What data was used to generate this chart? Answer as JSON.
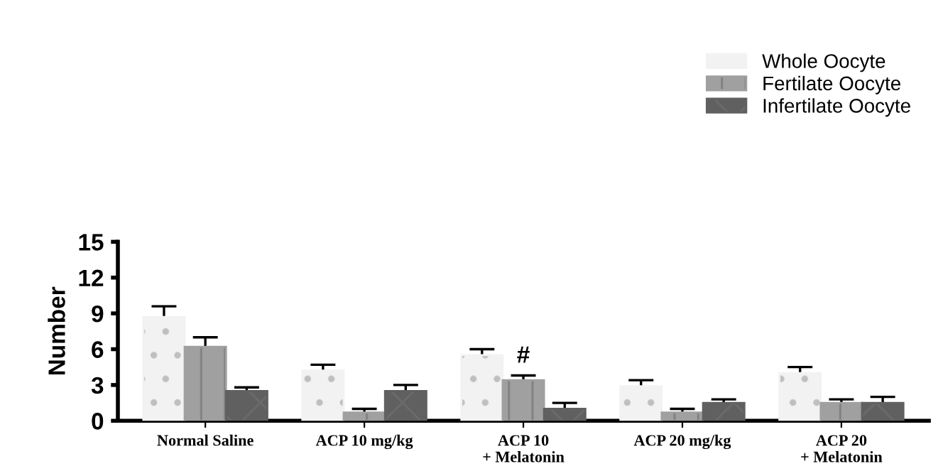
{
  "chart_data": {
    "type": "bar",
    "ylabel": "Number",
    "categories": [
      "Normal Saline",
      "ACP 10 mg/kg",
      "ACP 10\n+ Melatonin",
      "ACP 20 mg/kg",
      "ACP 20\n+ Melatonin"
    ],
    "series": [
      {
        "name": "Whole Oocyte",
        "color": "#f2f2f2",
        "values": [
          8.7,
          4.2,
          5.5,
          2.9,
          4.0
        ],
        "errors": [
          [
            8.7,
            9.6
          ],
          [
            4.2,
            4.7
          ],
          [
            5.5,
            6.0
          ],
          [
            2.9,
            3.4
          ],
          [
            4.0,
            4.5
          ]
        ]
      },
      {
        "name": "Fertilate Oocyte",
        "color": "#a0a0a0",
        "values": [
          6.2,
          0.7,
          3.4,
          0.7,
          1.5
        ],
        "errors": [
          [
            6.2,
            7.0
          ],
          [
            0.7,
            1.0
          ],
          [
            3.4,
            3.8
          ],
          [
            0.7,
            1.0
          ],
          [
            1.5,
            1.8
          ]
        ]
      },
      {
        "name": "Infertilate Oocyte",
        "color": "#606060",
        "values": [
          2.5,
          2.5,
          1.0,
          1.5,
          1.5
        ],
        "errors": [
          [
            2.5,
            2.8
          ],
          [
            2.5,
            3.0
          ],
          [
            1.0,
            1.5
          ],
          [
            1.5,
            1.8
          ],
          [
            1.5,
            2.0
          ]
        ]
      }
    ],
    "ylim": [
      0,
      15
    ],
    "yticks": [
      0,
      3,
      6,
      9,
      12,
      15
    ],
    "grid": false,
    "legend": "top right",
    "annotations": [
      {
        "text": "#",
        "x": "ACP 10\n+ Melatonin",
        "y": 3.8
      }
    ]
  }
}
